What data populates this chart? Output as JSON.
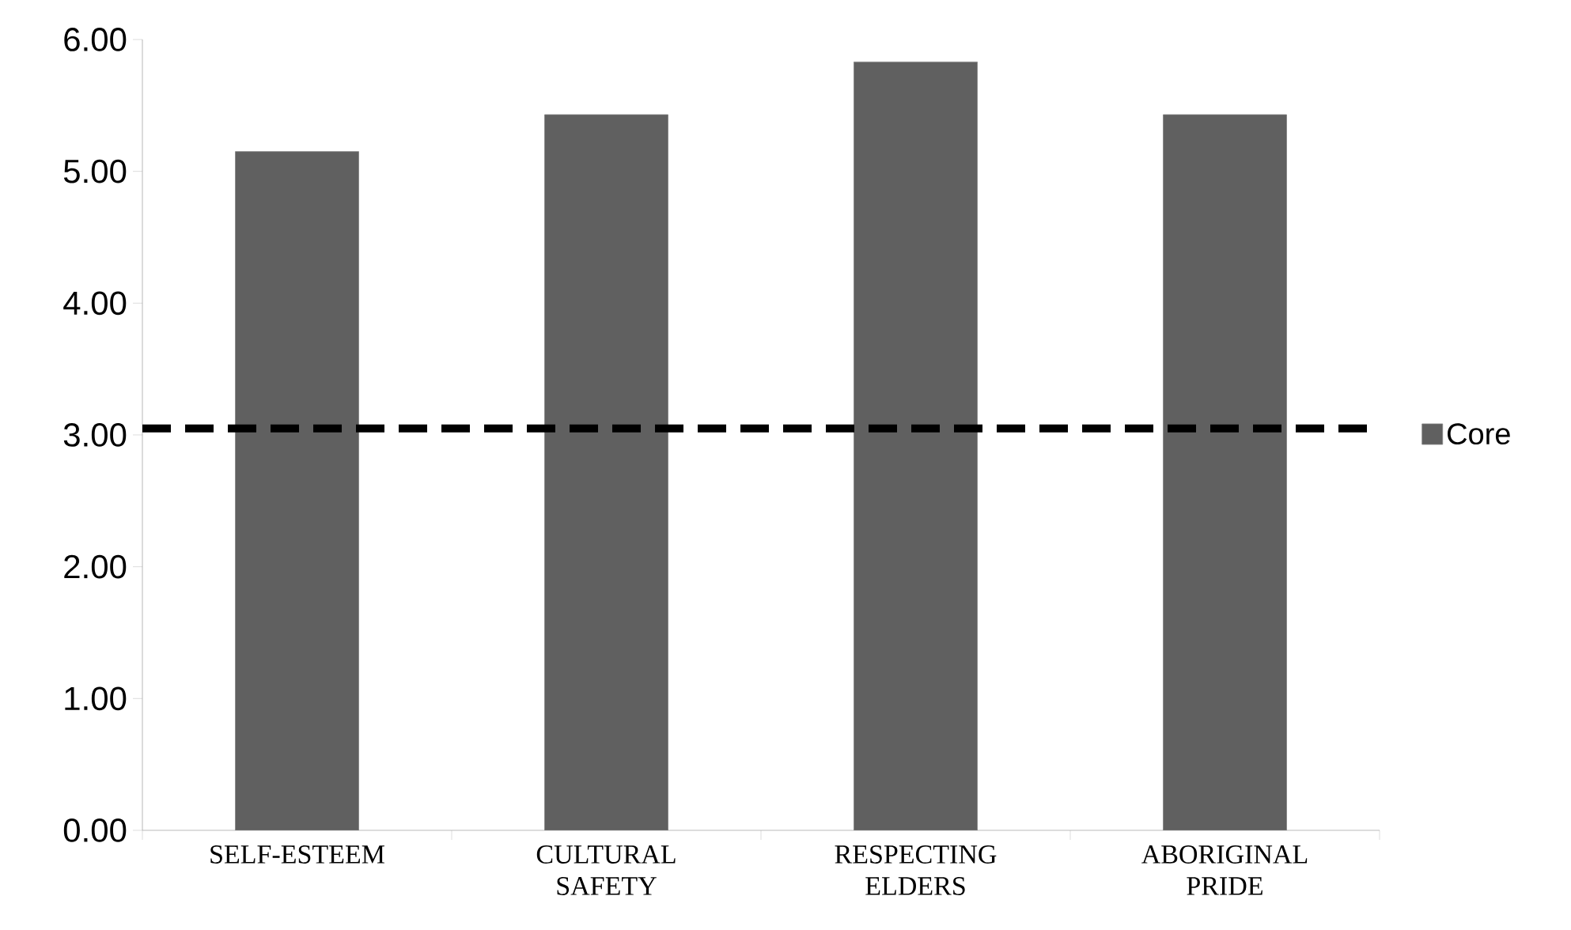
{
  "chart_data": {
    "type": "bar",
    "categories": [
      "SELF-ESTEEM",
      "CULTURAL SAFETY",
      "RESPECTING ELDERS",
      "ABORIGINAL PRIDE"
    ],
    "series": [
      {
        "name": "Core",
        "color": "#606060",
        "values": [
          5.15,
          5.43,
          5.83,
          5.43
        ]
      }
    ],
    "ylim": [
      0,
      6
    ],
    "yticks": [
      {
        "value": 0,
        "label": "0.00"
      },
      {
        "value": 1,
        "label": "1.00"
      },
      {
        "value": 2,
        "label": "2.00"
      },
      {
        "value": 3,
        "label": "3.00"
      },
      {
        "value": 4,
        "label": "4.00"
      },
      {
        "value": 5,
        "label": "5.00"
      },
      {
        "value": 6,
        "label": "6.00"
      }
    ],
    "ref_lines": [
      {
        "axis": "y",
        "value": 3.05,
        "color": "#000000",
        "line_style": "dashed"
      }
    ],
    "legend": "right",
    "grid": false
  }
}
